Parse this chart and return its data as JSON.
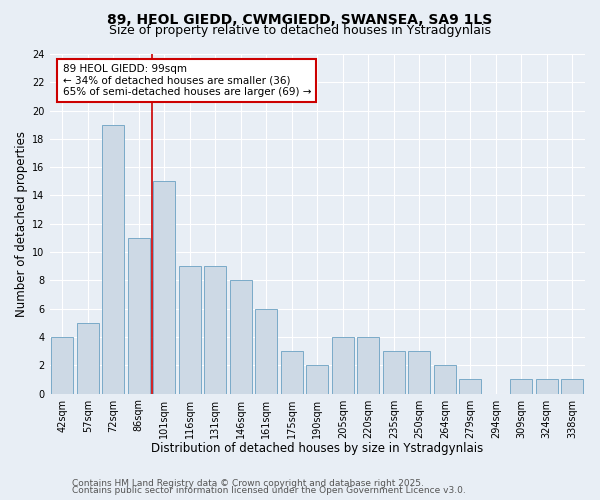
{
  "title1": "89, HEOL GIEDD, CWMGIEDD, SWANSEA, SA9 1LS",
  "title2": "Size of property relative to detached houses in Ystradgynlais",
  "xlabel": "Distribution of detached houses by size in Ystradgynlais",
  "ylabel": "Number of detached properties",
  "categories": [
    "42sqm",
    "57sqm",
    "72sqm",
    "86sqm",
    "101sqm",
    "116sqm",
    "131sqm",
    "146sqm",
    "161sqm",
    "175sqm",
    "190sqm",
    "205sqm",
    "220sqm",
    "235sqm",
    "250sqm",
    "264sqm",
    "279sqm",
    "294sqm",
    "309sqm",
    "324sqm",
    "338sqm"
  ],
  "values": [
    4,
    5,
    19,
    11,
    15,
    9,
    9,
    8,
    6,
    3,
    2,
    4,
    4,
    3,
    3,
    2,
    1,
    0,
    1,
    1,
    1
  ],
  "bar_color": "#cdd9e5",
  "bar_edge_color": "#7aaac8",
  "red_line_x": 3.5,
  "annotation_text": "89 HEOL GIEDD: 99sqm\n← 34% of detached houses are smaller (36)\n65% of semi-detached houses are larger (69) →",
  "annotation_box_color": "#ffffff",
  "annotation_box_edge": "#cc0000",
  "ylim": [
    0,
    24
  ],
  "yticks": [
    0,
    2,
    4,
    6,
    8,
    10,
    12,
    14,
    16,
    18,
    20,
    22,
    24
  ],
  "footer1": "Contains HM Land Registry data © Crown copyright and database right 2025.",
  "footer2": "Contains public sector information licensed under the Open Government Licence v3.0.",
  "background_color": "#e8eef5",
  "plot_background": "#e8eef5",
  "grid_color": "#ffffff",
  "title1_fontsize": 10,
  "title2_fontsize": 9,
  "axis_label_fontsize": 8.5,
  "tick_fontsize": 7,
  "annotation_fontsize": 7.5,
  "footer_fontsize": 6.5
}
